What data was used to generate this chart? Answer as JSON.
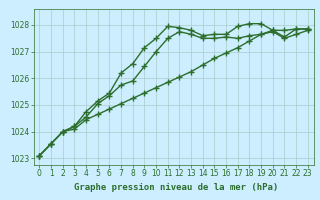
{
  "title": "Graphe pression niveau de la mer (hPa)",
  "bg_color": "#cceeff",
  "grid_color": "#aacccc",
  "line_color": "#2d6e2d",
  "xlim": [
    -0.5,
    23.5
  ],
  "ylim": [
    1022.75,
    1028.6
  ],
  "yticks": [
    1023,
    1024,
    1025,
    1026,
    1027,
    1028
  ],
  "xticks": [
    0,
    1,
    2,
    3,
    4,
    5,
    6,
    7,
    8,
    9,
    10,
    11,
    12,
    13,
    14,
    15,
    16,
    17,
    18,
    19,
    20,
    21,
    22,
    23
  ],
  "line1": [
    1023.1,
    1023.55,
    1024.0,
    1024.1,
    1024.45,
    1024.65,
    1024.85,
    1025.05,
    1025.25,
    1025.45,
    1025.65,
    1025.85,
    1026.05,
    1026.25,
    1026.5,
    1026.75,
    1026.95,
    1027.15,
    1027.4,
    1027.65,
    1027.8,
    1027.8,
    1027.85,
    1027.85
  ],
  "line2": [
    1023.1,
    1023.55,
    1024.0,
    1024.2,
    1024.75,
    1025.15,
    1025.45,
    1026.2,
    1026.55,
    1027.15,
    1027.5,
    1027.95,
    1027.9,
    1027.8,
    1027.6,
    1027.65,
    1027.65,
    1027.95,
    1028.05,
    1028.05,
    1027.8,
    1027.55,
    1027.85,
    1027.85
  ],
  "line3": [
    1023.1,
    1023.55,
    1024.0,
    1024.2,
    1024.55,
    1025.05,
    1025.35,
    1025.75,
    1025.9,
    1026.45,
    1027.0,
    1027.5,
    1027.75,
    1027.65,
    1027.5,
    1027.5,
    1027.55,
    1027.5,
    1027.6,
    1027.65,
    1027.75,
    1027.5,
    1027.65,
    1027.8
  ],
  "marker": "+",
  "markersize": 4,
  "linewidth": 1.0,
  "tick_fontsize": 5.5,
  "xlabel_fontsize": 6.5
}
